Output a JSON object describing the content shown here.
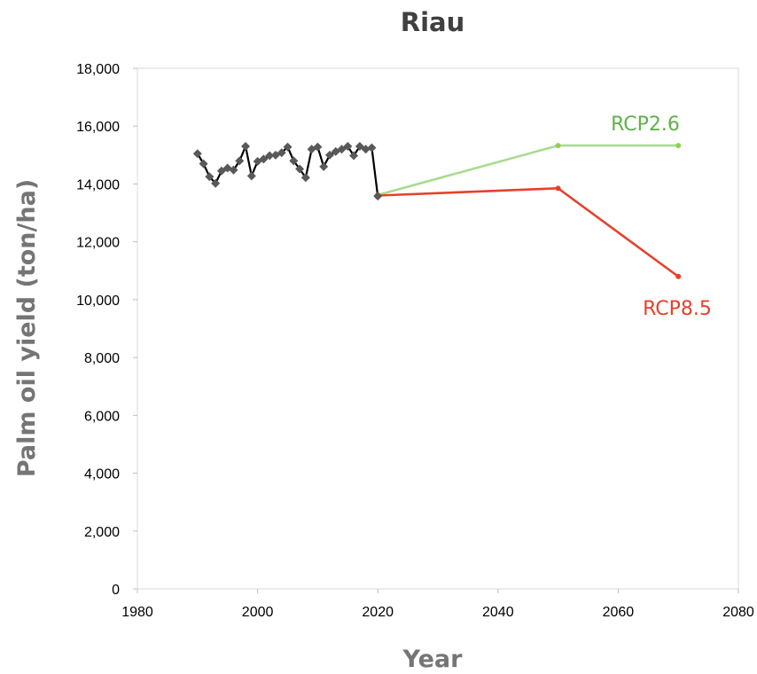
{
  "chart_data": {
    "type": "line",
    "title": "Riau",
    "xlabel": "Year",
    "ylabel": "Palm oil yield (ton/ha)",
    "xlim": [
      1980,
      2080
    ],
    "ylim": [
      0,
      18000
    ],
    "x_ticks": [
      1980,
      2000,
      2020,
      2040,
      2060,
      2080
    ],
    "x_tick_labels": [
      "1980",
      "2000",
      "2020",
      "2040",
      "2060",
      "2080"
    ],
    "y_ticks": [
      0,
      2000,
      4000,
      6000,
      8000,
      10000,
      12000,
      14000,
      16000,
      18000
    ],
    "y_tick_labels": [
      "0",
      "2,000",
      "4,000",
      "6,000",
      "8,000",
      "10,000",
      "12,000",
      "14,000",
      "16,000",
      "18,000"
    ],
    "grid": false,
    "series": [
      {
        "key": "historical",
        "marker": "diamond",
        "color": "#000000",
        "marker_color": "#595959",
        "points": [
          [
            1990,
            15050
          ],
          [
            1991,
            14700
          ],
          [
            1992,
            14250
          ],
          [
            1993,
            14020
          ],
          [
            1994,
            14450
          ],
          [
            1995,
            14550
          ],
          [
            1996,
            14480
          ],
          [
            1997,
            14800
          ],
          [
            1998,
            15300
          ],
          [
            1999,
            14280
          ],
          [
            2000,
            14780
          ],
          [
            2001,
            14860
          ],
          [
            2002,
            14980
          ],
          [
            2003,
            15000
          ],
          [
            2004,
            15080
          ],
          [
            2005,
            15280
          ],
          [
            2006,
            14800
          ],
          [
            2007,
            14520
          ],
          [
            2008,
            14220
          ],
          [
            2009,
            15200
          ],
          [
            2010,
            15280
          ],
          [
            2011,
            14600
          ],
          [
            2012,
            15000
          ],
          [
            2013,
            15120
          ],
          [
            2014,
            15200
          ],
          [
            2015,
            15300
          ],
          [
            2016,
            14980
          ],
          [
            2017,
            15300
          ],
          [
            2018,
            15200
          ],
          [
            2019,
            15250
          ],
          [
            2020,
            13580
          ]
        ]
      },
      {
        "key": "rcp26",
        "name": "RCP2.6",
        "marker": "dot",
        "color": "#a9db8e",
        "marker_color": "#92d050",
        "label_color": "#5fb14d",
        "points": [
          [
            2020,
            13620
          ],
          [
            2050,
            15330
          ],
          [
            2070,
            15330
          ]
        ]
      },
      {
        "key": "rcp85",
        "name": "RCP8.5",
        "marker": "dot",
        "color": "#e3422c",
        "marker_color": "#e3422c",
        "label_color": "#e3422c",
        "points": [
          [
            2020,
            13600
          ],
          [
            2050,
            13850
          ],
          [
            2070,
            10800
          ]
        ]
      }
    ]
  }
}
